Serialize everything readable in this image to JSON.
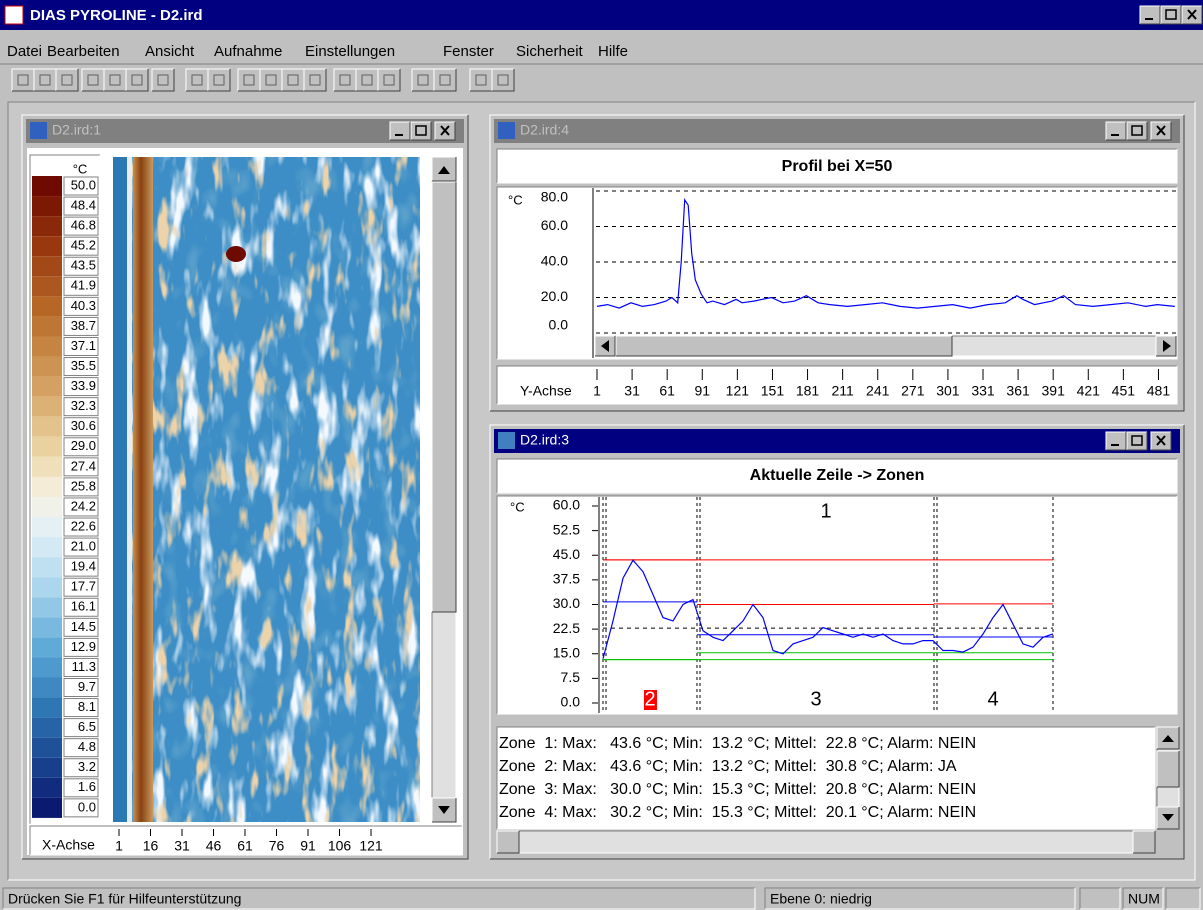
{
  "app_title": "DIAS PYROLINE - D2.ird",
  "menu": [
    "Datei",
    "Bearbeiten",
    "Ansicht",
    "Aufnahme",
    "Einstellungen",
    "Fenster",
    "Sicherheit",
    "Hilfe"
  ],
  "windows": {
    "thermogram": {
      "title": "D2.ird:1",
      "scale_unit": "°C",
      "scale_labels": [
        "50.0",
        "48.4",
        "46.8",
        "45.2",
        "43.5",
        "41.9",
        "40.3",
        "38.7",
        "37.1",
        "35.5",
        "33.9",
        "32.3",
        "30.6",
        "29.0",
        "27.4",
        "25.8",
        "24.2",
        "22.6",
        "21.0",
        "19.4",
        "17.7",
        "16.1",
        "14.5",
        "12.9",
        "11.3",
        "9.7",
        "8.1",
        "6.5",
        "4.8",
        "3.2",
        "1.6",
        "0.0"
      ],
      "x_axis_label": "X-Achse",
      "x_ticks": [
        1,
        16,
        31,
        46,
        61,
        76,
        91,
        106,
        121
      ]
    },
    "profile": {
      "title": "D2.ird:4",
      "chart_data": {
        "type": "line",
        "title": "Profil bei X=50",
        "y_unit": "°C",
        "x_label": "Y-Achse",
        "x": [
          1,
          10,
          20,
          30,
          40,
          50,
          60,
          65,
          70,
          73,
          76,
          79,
          82,
          85,
          90,
          95,
          100,
          110,
          120,
          125,
          135,
          150,
          160,
          170,
          180,
          190,
          200,
          215,
          230,
          245,
          260,
          275,
          290,
          305,
          320,
          335,
          350,
          360,
          365,
          375,
          390,
          400,
          410,
          425,
          440,
          455,
          470,
          480,
          495
        ],
        "values": [
          15,
          16,
          14,
          17,
          15,
          16,
          18,
          20,
          17,
          40,
          75,
          72,
          45,
          30,
          22,
          17,
          18,
          16,
          19,
          17,
          18,
          20,
          17,
          18,
          21,
          17,
          16,
          15,
          16,
          17,
          15,
          14,
          15,
          16,
          14,
          16,
          17,
          21,
          19,
          16,
          18,
          21,
          16,
          15,
          16,
          17,
          15,
          16,
          15
        ],
        "color": "#0000ff",
        "xlim": [
          1,
          496
        ],
        "ylim": [
          0,
          80
        ],
        "yticks": [
          {
            "value": 0,
            "label": "0.0"
          },
          {
            "value": 20,
            "label": "20.0"
          },
          {
            "value": 40,
            "label": "40.0"
          },
          {
            "value": 60,
            "label": "60.0"
          },
          {
            "value": 80,
            "label": "80.0"
          }
        ],
        "xticks": [
          1,
          31,
          61,
          91,
          121,
          151,
          181,
          211,
          241,
          271,
          301,
          331,
          361,
          391,
          421,
          451,
          481
        ],
        "grid": true
      }
    },
    "zones": {
      "title": "D2.ird:3",
      "chart_data": {
        "type": "line",
        "title": "Aktuelle Zeile -> Zonen",
        "y_unit": "°C",
        "values": [
          13.5,
          25,
          38,
          43.5,
          40,
          33,
          26,
          25,
          30,
          31.5,
          22,
          20,
          19,
          22,
          25,
          30,
          26,
          16,
          15,
          18,
          19,
          20,
          23,
          22,
          21,
          20,
          21,
          20,
          21,
          19,
          18,
          18,
          19,
          19,
          16,
          16,
          15.5,
          17,
          21,
          26,
          30,
          24,
          18,
          17,
          20,
          21
        ],
        "color": "#0000ff",
        "ylim": [
          0,
          60
        ],
        "yticks": [
          {
            "value": 0,
            "label": "0.0"
          },
          {
            "value": 7.5,
            "label": "7.5"
          },
          {
            "value": 15,
            "label": "15.0"
          },
          {
            "value": 22.5,
            "label": "22.5"
          },
          {
            "value": 30,
            "label": "30.0"
          },
          {
            "value": 37.5,
            "label": "37.5"
          },
          {
            "value": 45,
            "label": "45.0"
          },
          {
            "value": 52.5,
            "label": "52.5"
          },
          {
            "value": 60,
            "label": "60.0"
          }
        ],
        "zones": [
          {
            "name": "1",
            "max": 43.6,
            "min": 13.2,
            "mean": 22.8
          },
          {
            "name": "2",
            "max": 43.6,
            "min": 13.2,
            "mean": 30.8
          },
          {
            "name": "3",
            "max": 30.0,
            "min": 15.3,
            "mean": 20.8
          },
          {
            "name": "4",
            "max": 30.2,
            "min": 15.3,
            "mean": 20.1
          }
        ]
      },
      "zone_list": [
        "Zone  1: Max:   43.6 °C; Min:  13.2 °C; Mittel:  22.8 °C; Alarm: NEIN",
        "Zone  2: Max:   43.6 °C; Min:  13.2 °C; Mittel:  30.8 °C; Alarm: JA",
        "Zone  3: Max:   30.0 °C; Min:  15.3 °C; Mittel:  20.8 °C; Alarm: NEIN",
        "Zone  4: Max:   30.2 °C; Min:  15.3 °C; Mittel:  20.1 °C; Alarm: NEIN"
      ]
    }
  },
  "status": {
    "help": "Drücken Sie F1 für Hilfeunterstützung",
    "level": "Ebene 0: niedrig",
    "num": "NUM"
  }
}
